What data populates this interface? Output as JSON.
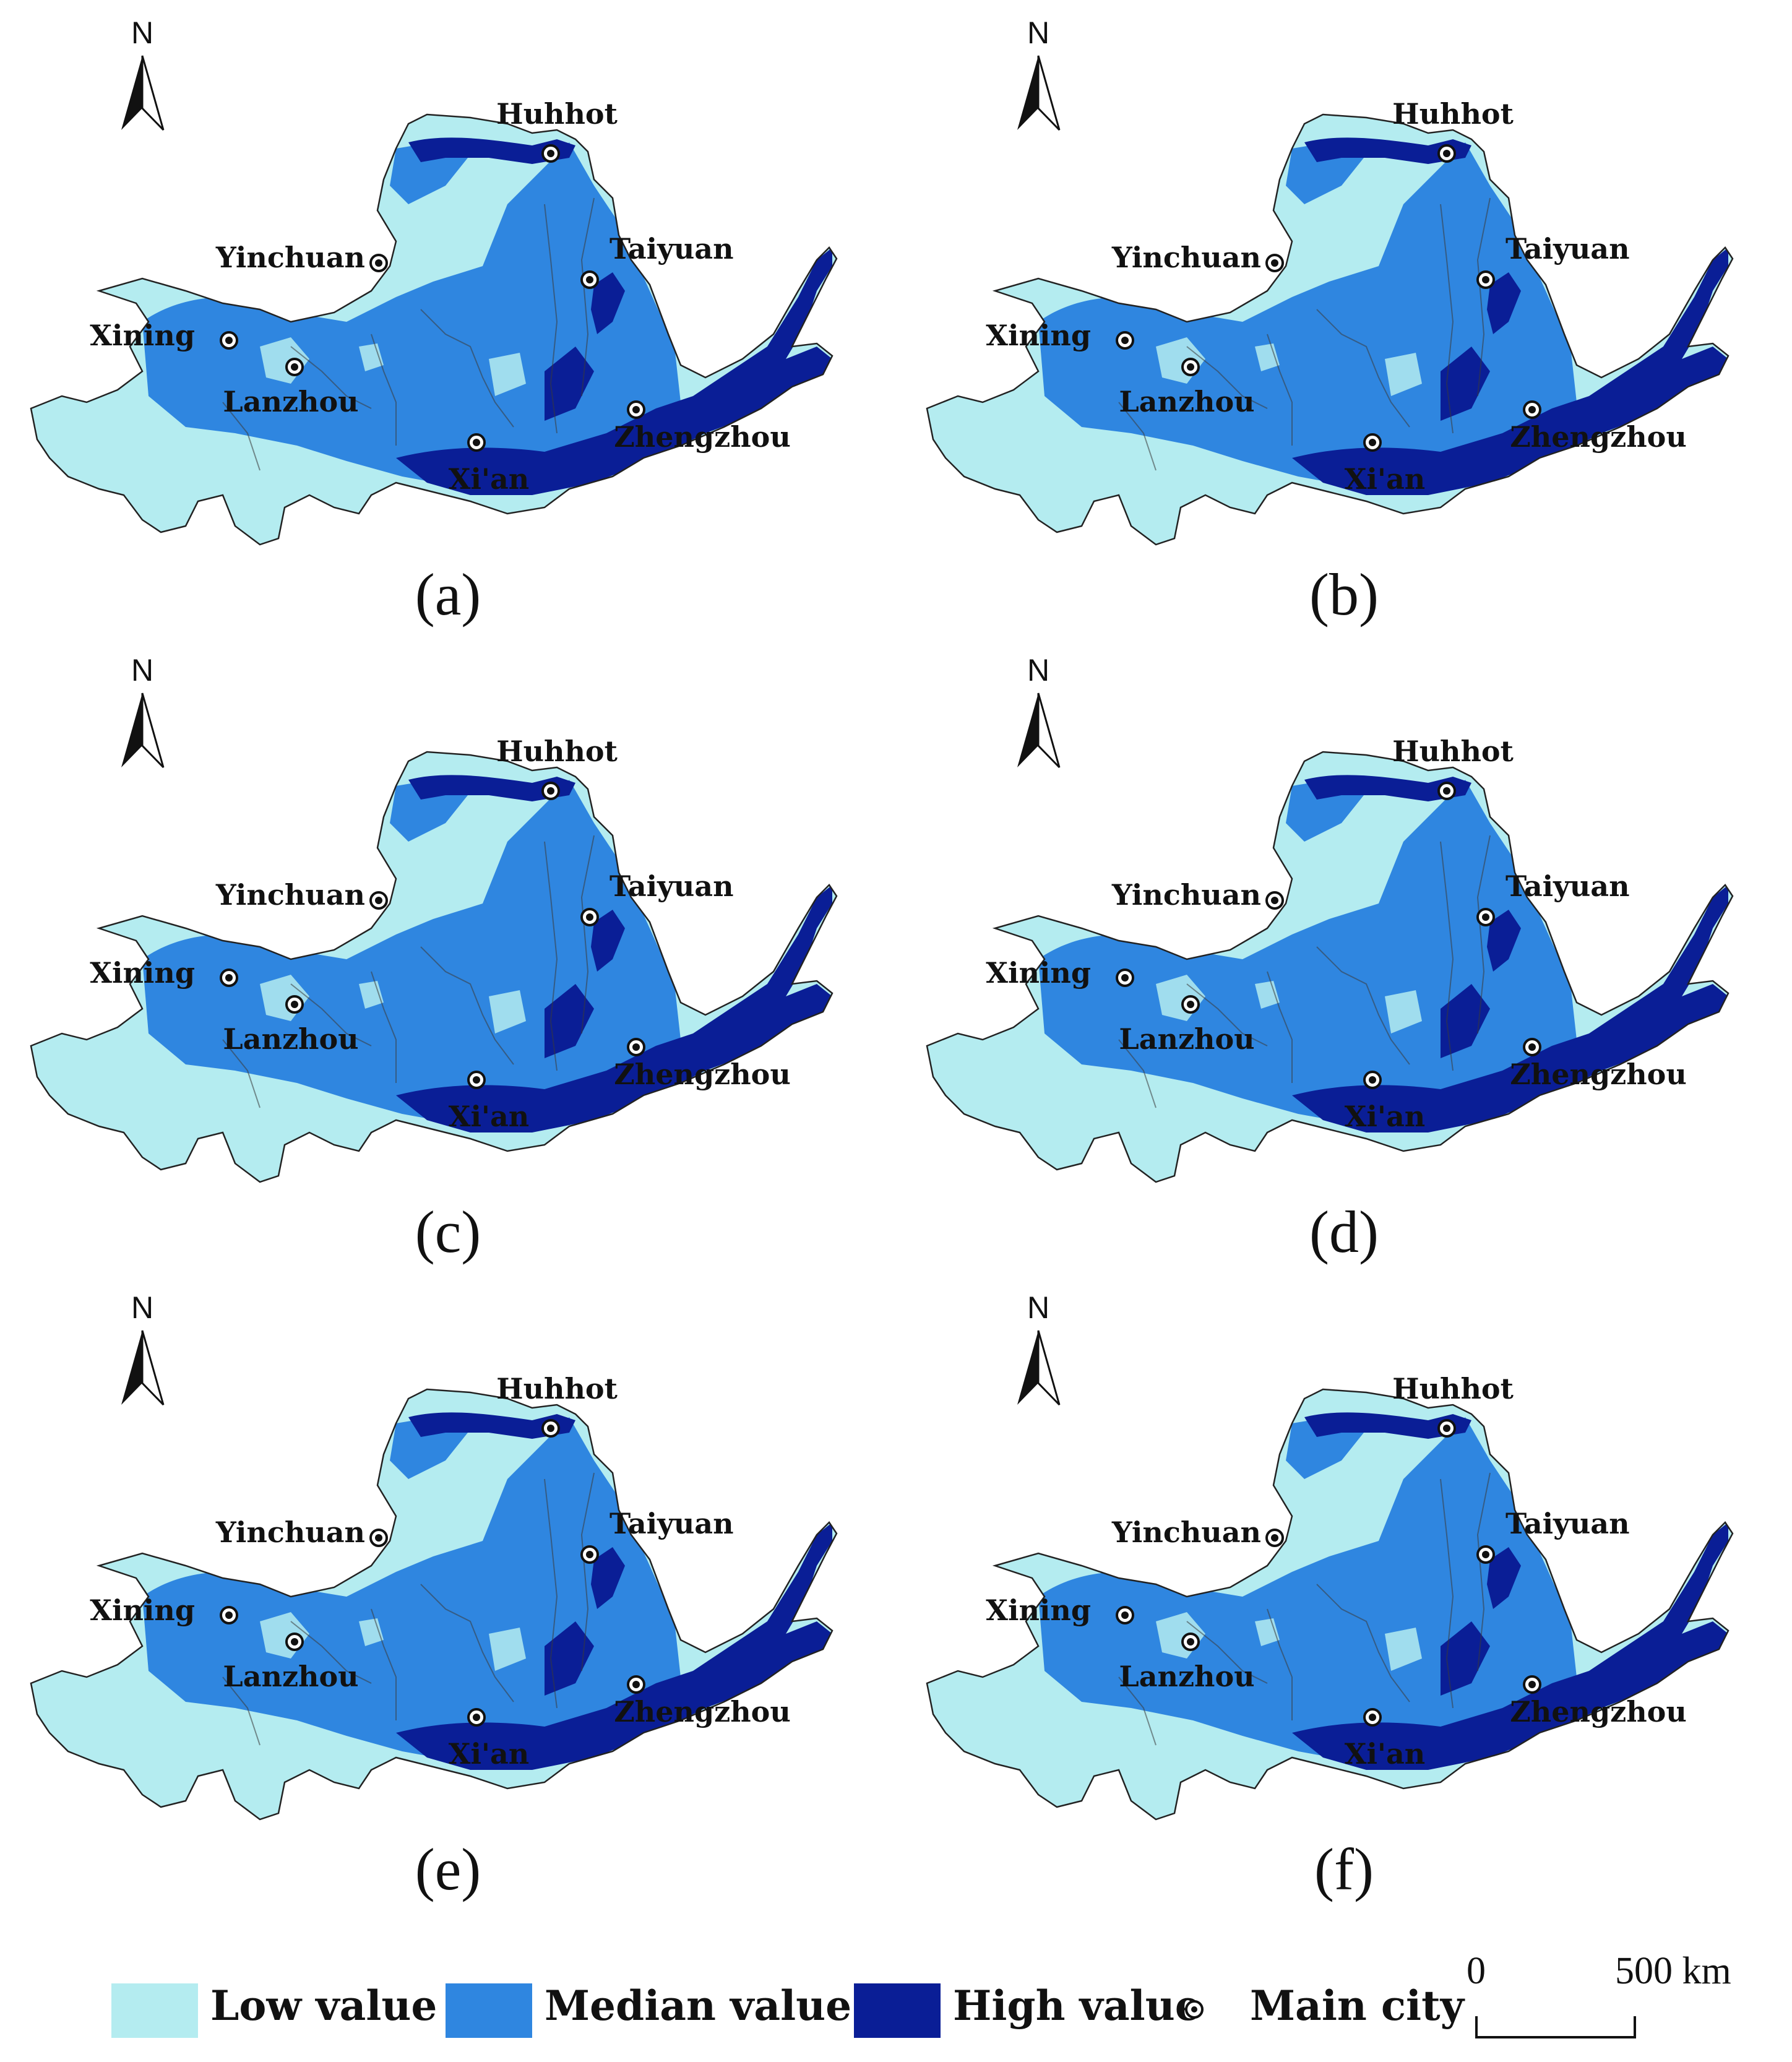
{
  "panels": [
    {
      "label": "(a)"
    },
    {
      "label": "(b)"
    },
    {
      "label": "(c)"
    },
    {
      "label": "(d)"
    },
    {
      "label": "(e)"
    },
    {
      "label": "(f)"
    }
  ],
  "north_arrow": {
    "letter": "N"
  },
  "cities": {
    "huhhot": "Huhhot",
    "yinchuan": "Yinchuan",
    "taiyuan": "Taiyuan",
    "xining": "Xining",
    "lanzhou": "Lanzhou",
    "xian": "Xi'an",
    "zhengzhou": "Zhengzhou"
  },
  "legend": {
    "low": "Low value",
    "median": "Median value",
    "high": "High value",
    "city": "Main city"
  },
  "scale_bar": {
    "start": "0",
    "end": "500 km"
  },
  "colors": {
    "low": "#b4ecf0",
    "median": "#2f86e0",
    "high": "#0a1e96",
    "background": "#ffffff"
  }
}
